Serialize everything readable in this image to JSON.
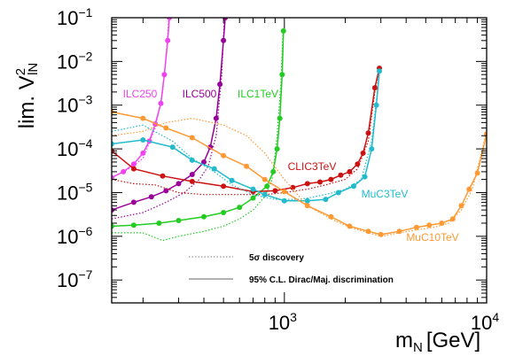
{
  "chart_data": {
    "type": "line",
    "xlabel": "m",
    "xlabel_sub": "N",
    "xlabel_unit": "[GeV]",
    "ylabel": "lim. V",
    "ylabel_sup": "2",
    "ylabel_sub": "lN",
    "xscale": "log",
    "yscale": "log",
    "xlim": [
      140,
      10000
    ],
    "ylim": [
      3e-08,
      0.1
    ],
    "xticks": [
      {
        "value": 1000,
        "base": "10",
        "exp": "3"
      },
      {
        "value": 10000,
        "base": "10",
        "exp": "4"
      }
    ],
    "yticks": [
      {
        "value": 1e-07,
        "base": "10",
        "exp": "−7"
      },
      {
        "value": 1e-06,
        "base": "10",
        "exp": "−6"
      },
      {
        "value": 1e-05,
        "base": "10",
        "exp": "−5"
      },
      {
        "value": 0.0001,
        "base": "10",
        "exp": "−4"
      },
      {
        "value": 0.001,
        "base": "10",
        "exp": "−3"
      },
      {
        "value": 0.01,
        "base": "10",
        "exp": "−2"
      },
      {
        "value": 0.1,
        "base": "10",
        "exp": "−1"
      }
    ],
    "grid": false,
    "legend": {
      "placement": "bottom-center",
      "entries": [
        {
          "label": "5σ discovery",
          "style": "dotted"
        },
        {
          "label": "95% C.L. Dirac/Maj. discrimination",
          "style": "solid"
        }
      ]
    },
    "series": [
      {
        "name": "ILC250",
        "color": "#ee44ee",
        "solid": [
          [
            140,
            2.2e-05
          ],
          [
            160,
            3e-05
          ],
          [
            180,
            4.5e-05
          ],
          [
            200,
            8e-05
          ],
          [
            215,
            0.00015
          ],
          [
            230,
            0.00037
          ],
          [
            245,
            0.0011
          ],
          [
            255,
            0.005
          ],
          [
            265,
            0.03
          ],
          [
            270,
            0.1
          ]
        ],
        "dotted": [
          [
            140,
            2.2e-05
          ],
          [
            170,
            3.5e-05
          ],
          [
            200,
            6e-05
          ],
          [
            230,
            0.0003
          ],
          [
            250,
            0.002
          ],
          [
            262,
            0.02
          ],
          [
            268,
            0.1
          ]
        ]
      },
      {
        "name": "ILC500",
        "color": "#990099",
        "solid": [
          [
            140,
            4e-06
          ],
          [
            180,
            6e-06
          ],
          [
            220,
            8e-06
          ],
          [
            260,
            1.1e-05
          ],
          [
            300,
            1.6e-05
          ],
          [
            350,
            2.6e-05
          ],
          [
            400,
            5e-05
          ],
          [
            430,
            0.00011
          ],
          [
            460,
            0.0005
          ],
          [
            480,
            0.003
          ],
          [
            500,
            0.03
          ],
          [
            510,
            0.1
          ]
        ],
        "dotted": [
          [
            140,
            2.5e-06
          ],
          [
            200,
            3.5e-06
          ],
          [
            260,
            6e-06
          ],
          [
            320,
            1e-05
          ],
          [
            380,
            2e-05
          ],
          [
            420,
            4e-05
          ],
          [
            460,
            0.0002
          ],
          [
            490,
            0.005
          ],
          [
            505,
            0.1
          ]
        ]
      },
      {
        "name": "ILC1TeV",
        "color": "#22cc22",
        "solid": [
          [
            140,
            1.7e-06
          ],
          [
            180,
            1.8e-06
          ],
          [
            240,
            2e-06
          ],
          [
            300,
            2.3e-06
          ],
          [
            400,
            2.8e-06
          ],
          [
            500,
            3.5e-06
          ],
          [
            600,
            4.6e-06
          ],
          [
            700,
            7.5e-06
          ],
          [
            820,
            1.4e-05
          ],
          [
            880,
            3e-05
          ],
          [
            920,
            0.0001
          ],
          [
            950,
            0.0005
          ],
          [
            975,
            0.005
          ],
          [
            990,
            0.05
          ]
        ],
        "dotted": [
          [
            140,
            1.2e-06
          ],
          [
            200,
            1.2e-06
          ],
          [
            250,
            8e-07
          ],
          [
            300,
            1e-06
          ],
          [
            400,
            1.3e-06
          ],
          [
            500,
            1.7e-06
          ],
          [
            600,
            2.5e-06
          ],
          [
            700,
            4e-06
          ],
          [
            800,
            8e-06
          ],
          [
            870,
            2e-05
          ],
          [
            920,
            0.0002
          ],
          [
            960,
            0.003
          ],
          [
            985,
            0.05
          ]
        ]
      },
      {
        "name": "CLIC3TeV",
        "color": "#cc1111",
        "solid": [
          [
            140,
            9e-05
          ],
          [
            180,
            3.5e-05
          ],
          [
            250,
            2.4e-05
          ],
          [
            350,
            1.8e-05
          ],
          [
            500,
            1.4e-05
          ],
          [
            700,
            1.05e-05
          ],
          [
            900,
            1.1e-05
          ],
          [
            1100,
            1.3e-05
          ],
          [
            1300,
            1.6e-05
          ],
          [
            1500,
            1.75e-05
          ],
          [
            1700,
            2e-05
          ],
          [
            1900,
            2.5e-05
          ],
          [
            2100,
            3e-05
          ],
          [
            2300,
            4.5e-05
          ],
          [
            2450,
            8e-05
          ],
          [
            2600,
            0.00023
          ],
          [
            2800,
            0.0025
          ],
          [
            2950,
            0.007
          ]
        ],
        "dotted": [
          [
            140,
            2e-05
          ],
          [
            180,
            1.6e-05
          ],
          [
            230,
            1.5e-05
          ],
          [
            300,
            1e-05
          ],
          [
            400,
            9e-06
          ],
          [
            600,
            9e-06
          ],
          [
            800,
            9e-06
          ],
          [
            1000,
            1e-05
          ],
          [
            1300,
            1.2e-05
          ],
          [
            1600,
            1.5e-05
          ],
          [
            2000,
            2e-05
          ],
          [
            2300,
            3.5e-05
          ],
          [
            2600,
            0.00015
          ],
          [
            2800,
            0.002
          ],
          [
            2950,
            0.007
          ]
        ]
      },
      {
        "name": "MuC3TeV",
        "color": "#22bbcc",
        "solid": [
          [
            140,
            0.00013
          ],
          [
            200,
            0.00016
          ],
          [
            280,
            0.00011
          ],
          [
            350,
            5.5e-05
          ],
          [
            450,
            3.5e-05
          ],
          [
            550,
            1.9e-05
          ],
          [
            700,
            1.2e-05
          ],
          [
            800,
            9e-06
          ],
          [
            1000,
            6.5e-06
          ],
          [
            1300,
            6.5e-06
          ],
          [
            1600,
            7e-06
          ],
          [
            1850,
            1e-05
          ],
          [
            2200,
            1.4e-05
          ],
          [
            2500,
            2.3e-05
          ],
          [
            2700,
            0.0001
          ],
          [
            2850,
            0.001
          ],
          [
            2950,
            0.006
          ]
        ],
        "dotted": [
          [
            140,
            0.00025
          ],
          [
            200,
            0.00035
          ],
          [
            280,
            0.00015
          ],
          [
            350,
            6e-05
          ],
          [
            450,
            3e-05
          ],
          [
            550,
            1.5e-05
          ],
          [
            700,
            9e-06
          ],
          [
            900,
            7e-06
          ],
          [
            1200,
            7e-06
          ],
          [
            1600,
            9e-06
          ],
          [
            2000,
            1.2e-05
          ],
          [
            2400,
            2e-05
          ],
          [
            2700,
            0.00015
          ],
          [
            2950,
            0.005
          ]
        ]
      },
      {
        "name": "MuC10TeV",
        "color": "#ff9933",
        "solid": [
          [
            140,
            0.0007
          ],
          [
            200,
            0.0005
          ],
          [
            260,
            0.0003
          ],
          [
            350,
            0.00018
          ],
          [
            500,
            7e-05
          ],
          [
            650,
            4e-05
          ],
          [
            800,
            2e-05
          ],
          [
            1000,
            1.05e-05
          ],
          [
            1300,
            5e-06
          ],
          [
            1700,
            2.8e-06
          ],
          [
            2100,
            1.7e-06
          ],
          [
            2600,
            1.3e-06
          ],
          [
            3000,
            1.1e-06
          ],
          [
            3700,
            1.3e-06
          ],
          [
            4500,
            1.6e-06
          ],
          [
            5200,
            1.8e-06
          ],
          [
            6000,
            2e-06
          ],
          [
            6800,
            2.5e-06
          ],
          [
            7500,
            5e-06
          ],
          [
            8200,
            1.2e-05
          ],
          [
            9000,
            2.8e-05
          ],
          [
            10000,
            0.00022
          ]
        ],
        "dotted": [
          [
            140,
            0.0002
          ],
          [
            200,
            0.00025
          ],
          [
            260,
            0.0004
          ],
          [
            350,
            0.0005
          ],
          [
            500,
            0.00035
          ],
          [
            650,
            0.0002
          ],
          [
            800,
            8e-05
          ],
          [
            1000,
            2e-05
          ],
          [
            1300,
            5e-06
          ],
          [
            1700,
            2.5e-06
          ],
          [
            2100,
            1.6e-06
          ],
          [
            2600,
            1.2e-06
          ],
          [
            3000,
            1e-06
          ],
          [
            3700,
            1.2e-06
          ],
          [
            4500,
            1.4e-06
          ],
          [
            5500,
            1.6e-06
          ],
          [
            6500,
            2e-06
          ],
          [
            7500,
            4e-06
          ],
          [
            8500,
            1.2e-05
          ],
          [
            10000,
            0.00025
          ]
        ]
      }
    ]
  }
}
